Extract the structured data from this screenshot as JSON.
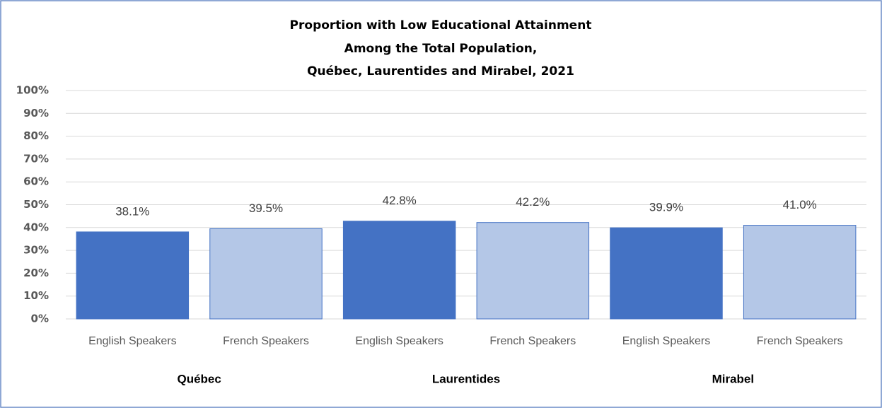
{
  "chart_data": {
    "type": "bar",
    "title": [
      "Proportion with Low Educational  Attainment",
      "Among the Total Population,",
      "Québec, Laurentides and Mirabel, 2021"
    ],
    "categories": [
      "English Speakers",
      "French Speakers",
      "English Speakers",
      "French Speakers",
      "English Speakers",
      "French Speakers"
    ],
    "groups": [
      "Québec",
      "Laurentides",
      "Mirabel"
    ],
    "values": [
      38.1,
      39.5,
      42.8,
      42.2,
      39.9,
      41.0
    ],
    "value_labels": [
      "38.1%",
      "39.5%",
      "42.8%",
      "42.2%",
      "39.9%",
      "41.0%"
    ],
    "colors": [
      "#4472c4",
      "#b4c7e7",
      "#4472c4",
      "#b4c7e7",
      "#4472c4",
      "#b4c7e7"
    ],
    "ylim": [
      0,
      100
    ],
    "yticks": [
      {
        "value": 0,
        "label": "0%"
      },
      {
        "value": 10,
        "label": "10%"
      },
      {
        "value": 20,
        "label": "20%"
      },
      {
        "value": 30,
        "label": "30%"
      },
      {
        "value": 40,
        "label": "40%"
      },
      {
        "value": 50,
        "label": "50%"
      },
      {
        "value": 60,
        "label": "60%"
      },
      {
        "value": 70,
        "label": "70%"
      },
      {
        "value": 80,
        "label": "80%"
      },
      {
        "value": 90,
        "label": "90%"
      },
      {
        "value": 100,
        "label": "100%"
      }
    ],
    "grid": true
  }
}
